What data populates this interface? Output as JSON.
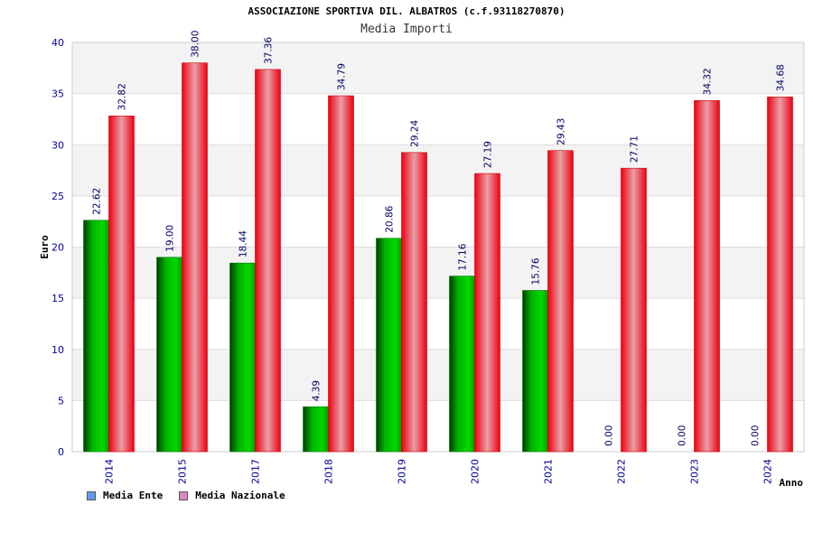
{
  "header": {
    "title": "ASSOCIAZIONE SPORTIVA DIL. ALBATROS (c.f.93118270870)",
    "subtitle": "Media Importi"
  },
  "legend": {
    "items": [
      {
        "label": "Media Ente",
        "color": "#6699ee"
      },
      {
        "label": "Media Nazionale",
        "color": "#dd88bb"
      }
    ]
  },
  "chart_data": {
    "type": "bar",
    "title": "ASSOCIAZIONE SPORTIVA DIL. ALBATROS (c.f.93118270870)",
    "subtitle": "Media Importi",
    "xlabel": "Anno",
    "ylabel": "Euro",
    "categories": [
      "2014",
      "2015",
      "2017",
      "2018",
      "2019",
      "2020",
      "2021",
      "2022",
      "2023",
      "2024"
    ],
    "series": [
      {
        "name": "Media Ente",
        "values": [
          22.62,
          19.0,
          18.44,
          4.39,
          20.86,
          17.16,
          15.76,
          0.0,
          0.0,
          0.0
        ],
        "color": "#00aa00"
      },
      {
        "name": "Media Nazionale",
        "values": [
          32.82,
          38.0,
          37.36,
          34.79,
          29.24,
          27.19,
          29.43,
          27.71,
          34.32,
          34.68
        ],
        "color": "#ee0000"
      }
    ],
    "data_labels": [
      [
        "22.62",
        "19.00",
        "18.44",
        "4.39",
        "20.86",
        "17.16",
        "15.76",
        "0.00",
        "0.00",
        "0.00"
      ],
      [
        "32.82",
        "38.00",
        "37.36",
        "34.79",
        "29.24",
        "27.19",
        "29.43",
        "27.71",
        "34.32",
        "34.68"
      ]
    ],
    "ylim": [
      0,
      40
    ],
    "yticks": [
      0,
      5,
      10,
      15,
      20,
      25,
      30,
      35,
      40
    ],
    "ytick_labels": [
      "0",
      "5",
      "10",
      "15",
      "20",
      "25",
      "30",
      "35",
      "40"
    ],
    "grid": true,
    "legend_position": "bottom-left"
  }
}
